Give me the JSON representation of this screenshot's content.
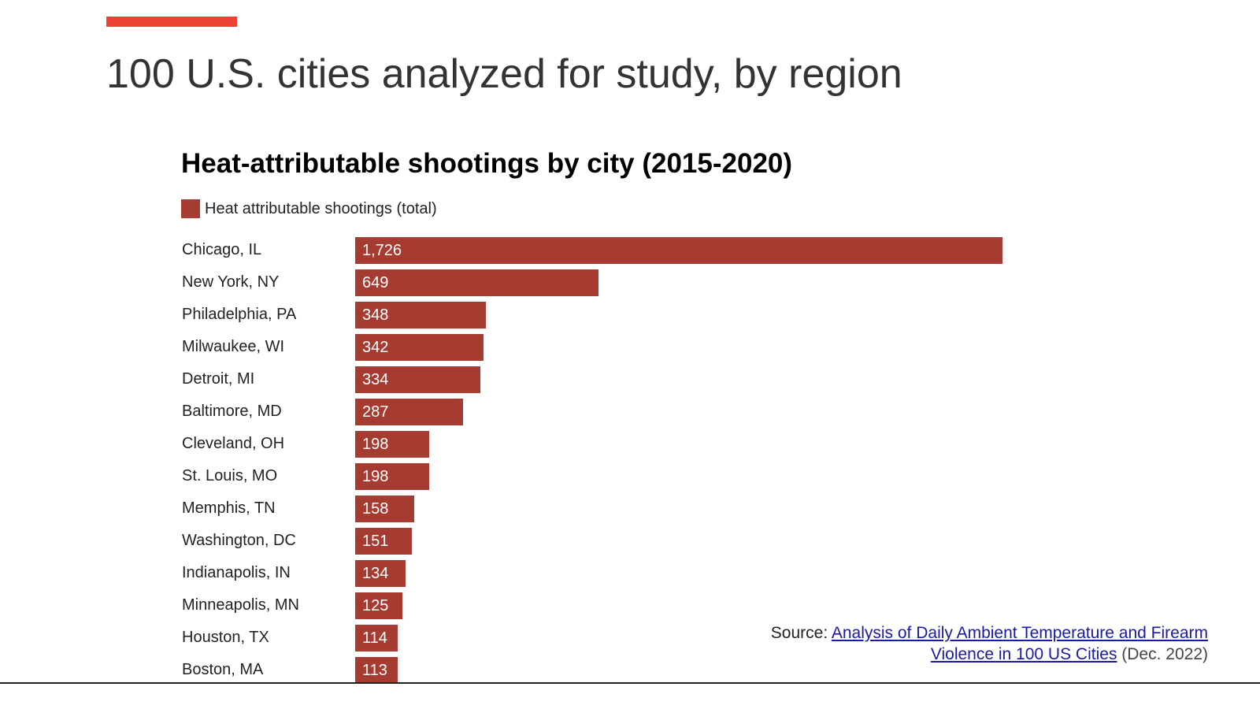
{
  "slide": {
    "title": "100 U.S. cities analyzed for study, by region",
    "accent_color": "#ea4335"
  },
  "chart_data": {
    "type": "bar",
    "orientation": "horizontal",
    "title": "Heat-attributable shootings by city (2015-2020)",
    "legend": {
      "position": "top-left",
      "entries": [
        "Heat attributable shootings (total)"
      ]
    },
    "bar_color": "#a63c31",
    "categories": [
      "Chicago, IL",
      "New York, NY",
      "Philadelphia, PA",
      "Milwaukee, WI",
      "Detroit, MI",
      "Baltimore, MD",
      "Cleveland, OH",
      "St. Louis, MO",
      "Memphis, TN",
      "Washington, DC",
      "Indianapolis, IN",
      "Minneapolis, MN",
      "Houston, TX",
      "Boston, MA"
    ],
    "series": [
      {
        "name": "Heat attributable shootings (total)",
        "values": [
          1726,
          649,
          348,
          342,
          334,
          287,
          198,
          198,
          158,
          151,
          134,
          125,
          114,
          113
        ]
      }
    ],
    "data_labels": [
      "1,726",
      "649",
      "348",
      "342",
      "334",
      "287",
      "198",
      "198",
      "158",
      "151",
      "134",
      "125",
      "114",
      "113"
    ],
    "grid": false
  },
  "source": {
    "prefix": "Source: ",
    "link_text": "Analysis of Daily Ambient Temperature and Firearm Violence in 100 US Cities",
    "suffix": " (Dec. 2022)",
    "link_color": "#1a1aa6"
  }
}
